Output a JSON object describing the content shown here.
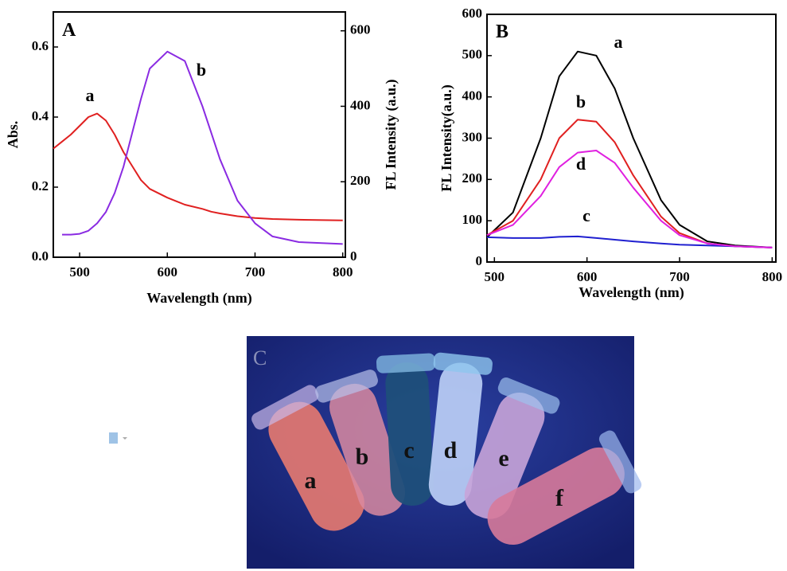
{
  "chart_data": [
    {
      "type": "line",
      "title": "A",
      "x_label": "Wavelength (nm)",
      "y_label": "Abs.",
      "y2_label": "FL Intensity (a.u.)",
      "x": [
        470,
        480,
        490,
        500,
        510,
        520,
        530,
        540,
        550,
        560,
        570,
        580,
        600,
        620,
        640,
        650,
        660,
        680,
        700,
        720,
        750,
        800
      ],
      "series": [
        {
          "name": "a",
          "color": "#e02020",
          "values": [
            0.31,
            0.33,
            0.35,
            0.375,
            0.4,
            0.41,
            0.39,
            0.35,
            0.3,
            0.26,
            0.22,
            0.195,
            0.17,
            0.15,
            0.138,
            0.13,
            0.125,
            0.117,
            0.112,
            0.109,
            0.107,
            0.105
          ]
        },
        {
          "name": "b",
          "color": "#8a2be2",
          "axis": "y2",
          "values": [
            null,
            60,
            60,
            62,
            70,
            90,
            120,
            170,
            240,
            330,
            420,
            500,
            545,
            520,
            400,
            330,
            260,
            150,
            90,
            55,
            40,
            35
          ]
        }
      ],
      "xlim": [
        470,
        803
      ],
      "xticks": [
        500,
        600,
        700,
        800
      ],
      "ylim": [
        0,
        0.7
      ],
      "yticks": [
        {
          "value": 0,
          "label": "0.0"
        },
        0.2,
        0.4,
        0.6
      ],
      "y2lim": [
        0,
        650
      ],
      "y2ticks": [
        0,
        200,
        400,
        600
      ]
    },
    {
      "type": "line",
      "title": "B",
      "x_label": "Wavelength (nm)",
      "y_label": "FL Intensity(a.u.)",
      "x": [
        492,
        520,
        550,
        570,
        590,
        610,
        630,
        650,
        680,
        700,
        730,
        760,
        800
      ],
      "series": [
        {
          "name": "a",
          "color": "#000000",
          "values": [
            60,
            120,
            300,
            450,
            510,
            500,
            420,
            300,
            150,
            90,
            50,
            40,
            35
          ]
        },
        {
          "name": "b",
          "color": "#e02020",
          "values": [
            65,
            100,
            200,
            300,
            345,
            340,
            290,
            210,
            110,
            70,
            45,
            38,
            35
          ]
        },
        {
          "name": "c",
          "color": "#2020d0",
          "values": [
            60,
            58,
            58,
            61,
            62,
            58,
            54,
            50,
            45,
            42,
            40,
            38,
            35
          ]
        },
        {
          "name": "d",
          "color": "#e020e0",
          "values": [
            65,
            90,
            160,
            230,
            265,
            270,
            240,
            180,
            100,
            65,
            45,
            38,
            35
          ]
        }
      ],
      "xlim": [
        492,
        804
      ],
      "xticks": [
        500,
        600,
        700,
        800
      ],
      "ylim": [
        0,
        600
      ],
      "yticks": [
        0,
        100,
        200,
        300,
        400,
        500,
        600
      ]
    }
  ],
  "photo": {
    "label": "C",
    "tubes": [
      "a",
      "b",
      "c",
      "d",
      "e",
      "f"
    ]
  }
}
